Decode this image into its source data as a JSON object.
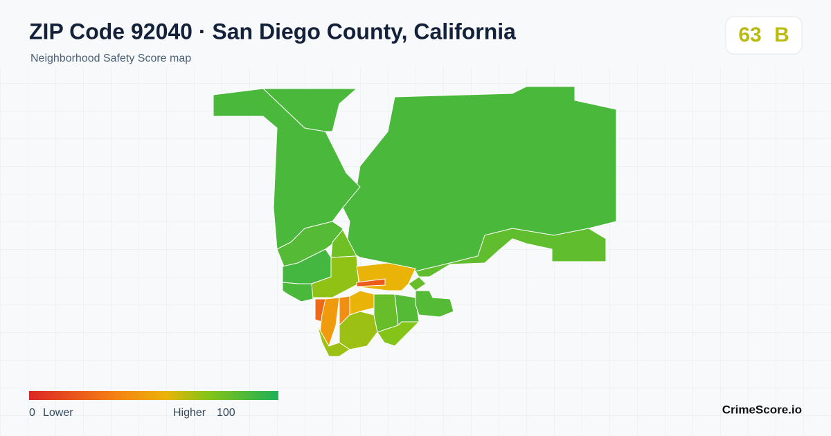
{
  "header": {
    "title": "ZIP Code 92040 · San Diego County, California",
    "subtitle": "Neighborhood Safety Score map"
  },
  "badge": {
    "score": 63,
    "grade": "B"
  },
  "legend": {
    "min": 0,
    "min_label": "Lower",
    "max_label": "Higher",
    "max": 100
  },
  "regions": {
    "scores": [
      88,
      82,
      88,
      88,
      85,
      90,
      78,
      70,
      55,
      20,
      25,
      45,
      40,
      55,
      68,
      80,
      85,
      72,
      68,
      85,
      80,
      88
    ]
  },
  "brand": "CrimeScore.io"
}
